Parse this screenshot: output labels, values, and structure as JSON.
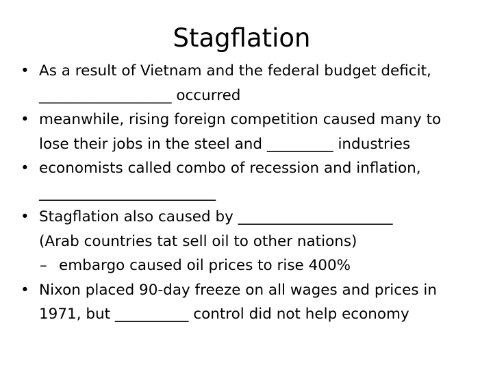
{
  "title": "Stagflation",
  "bullet_symbol": "•",
  "sub_bullet_symbol": "–",
  "bullets": [
    {
      "lines": [
        "As a result of Vietnam and the federal budget deficit,",
        "__________________ occurred"
      ]
    },
    {
      "lines": [
        "meanwhile, rising foreign competition caused many to",
        "lose their jobs in the steel and _________ industries"
      ]
    },
    {
      "lines": [
        "economists called combo of recession and inflation,",
        "________________________"
      ]
    },
    {
      "lines": [
        "Stagflation also caused by _____________________",
        "(Arab countries tat sell oil to other nations)"
      ],
      "sub_bullets": [
        "embargo caused oil prices to rise 400%"
      ]
    },
    {
      "lines": [
        "Nixon placed 90-day freeze on all wages and prices in",
        "1971, but __________ control did not help economy"
      ]
    }
  ]
}
